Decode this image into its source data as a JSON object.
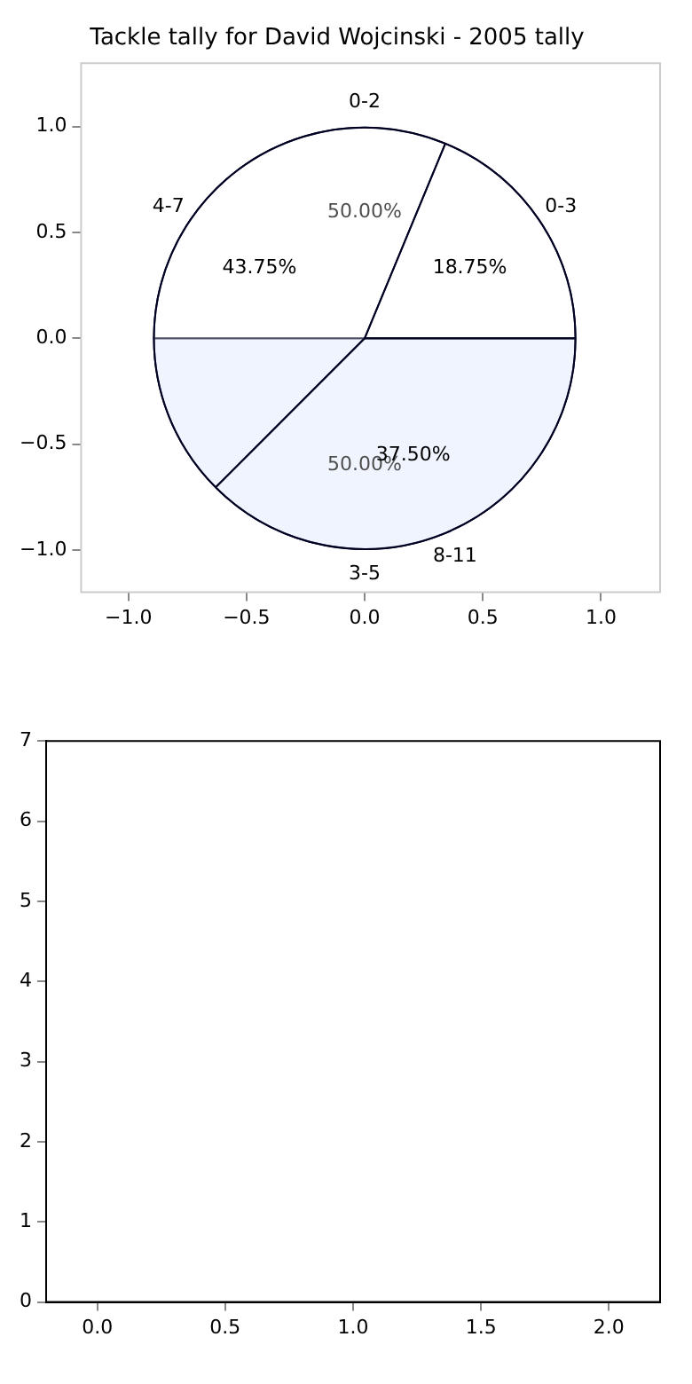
{
  "chart_data": [
    {
      "type": "scatter",
      "title": "Tackle tally for David Wojcinski - 2005 tally",
      "xlim": [
        -1.2,
        1.25
      ],
      "ylim": [
        -1.2,
        1.3
      ],
      "xticks": [
        {
          "value": -1,
          "label": "−1.0"
        },
        {
          "value": -0.5,
          "label": "−0.5"
        },
        {
          "value": 0,
          "label": "0.0"
        },
        {
          "value": 0.5,
          "label": "0.5"
        },
        {
          "value": 1,
          "label": "1.0"
        }
      ],
      "yticks": [
        {
          "value": -1,
          "label": "−1.0"
        },
        {
          "value": -0.5,
          "label": "−0.5"
        },
        {
          "value": 0,
          "label": "0.0"
        },
        {
          "value": 0.5,
          "label": "0.5"
        },
        {
          "value": 1,
          "label": "1.0"
        }
      ]
    },
    {
      "type": "pie",
      "categories": [
        "0-2",
        "3-5"
      ],
      "values": [
        50,
        50
      ],
      "colors": [
        "#ffffff",
        "#eaf0ff"
      ],
      "value_labels": [
        "50.00%",
        "50.00%"
      ]
    },
    {
      "type": "pie",
      "categories": [
        "0-3",
        "4-7",
        "8-11"
      ],
      "values": [
        18.75,
        43.75,
        37.5
      ],
      "colors": [
        "#ffffff",
        "#ffffff",
        "#ffffff"
      ],
      "value_labels": [
        "18.75%",
        "43.75%",
        "37.50%"
      ]
    },
    {
      "type": "scatter",
      "xlim": [
        -0.2,
        2.2
      ],
      "ylim": [
        0,
        7
      ],
      "xticks": [
        {
          "value": 0,
          "label": "0.0"
        },
        0.5,
        {
          "value": 1,
          "label": "1.0"
        },
        1.5,
        {
          "value": 2,
          "label": "2.0"
        }
      ],
      "yticks": [
        0,
        1,
        2,
        3,
        4,
        5,
        6,
        7
      ]
    }
  ]
}
